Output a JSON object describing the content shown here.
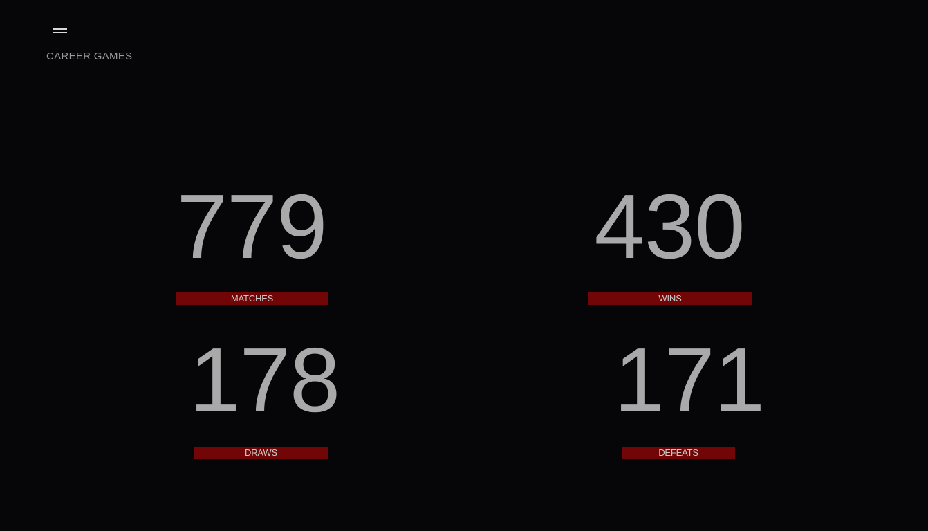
{
  "header": {
    "menu_icon": "hamburger-menu-icon",
    "title": "CAREER GAMES"
  },
  "stats": [
    {
      "key": "matches",
      "value": "779",
      "label": "MATCHES"
    },
    {
      "key": "wins",
      "value": "430",
      "label": "WINS"
    },
    {
      "key": "draws",
      "value": "178",
      "label": "DRAWS"
    },
    {
      "key": "defeats",
      "value": "171",
      "label": "DEFEATS"
    }
  ],
  "colors": {
    "background": "#060608",
    "number_text": "#a9a9a9",
    "label_background": "#720505",
    "label_text": "#c9c9c9",
    "divider": "#bdbdbd"
  }
}
